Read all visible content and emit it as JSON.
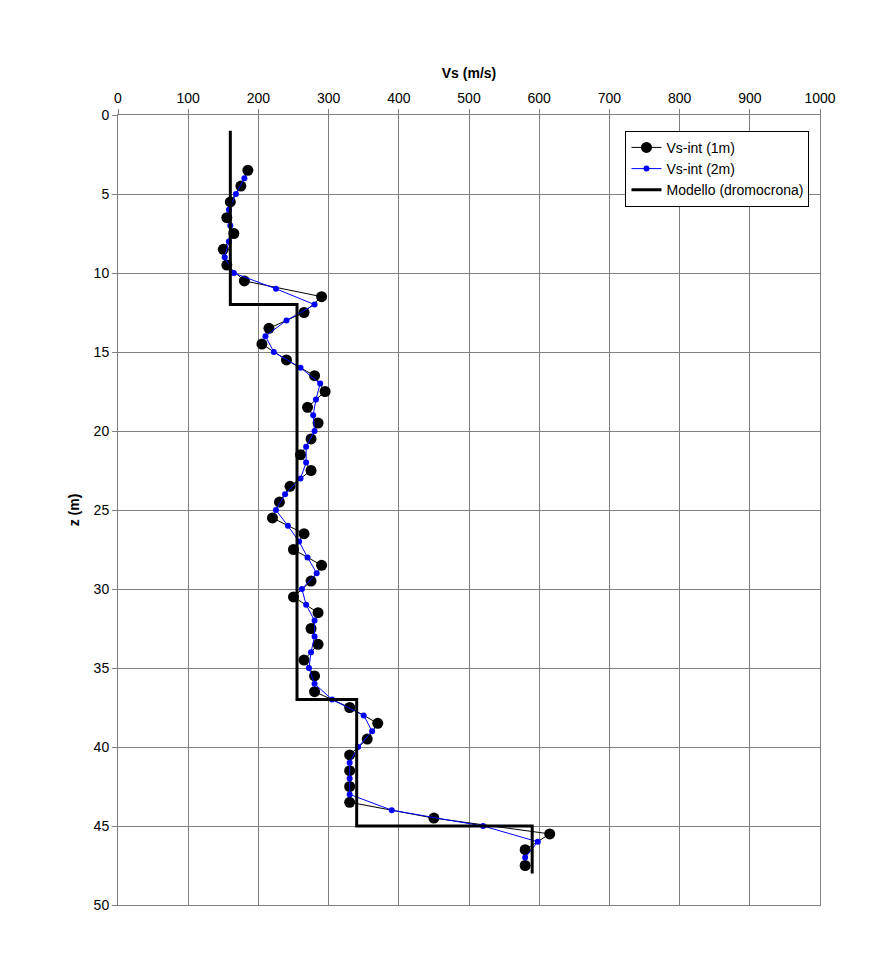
{
  "chart_data": {
    "type": "line",
    "x_label": "Vs (m/s)",
    "y_label": "z (m)",
    "xlim": [
      0,
      1000
    ],
    "xticks": [
      0,
      100,
      200,
      300,
      400,
      500,
      600,
      700,
      800,
      900,
      1000
    ],
    "ylim": [
      0,
      50
    ],
    "yticks": [
      0,
      5,
      10,
      15,
      20,
      25,
      30,
      35,
      40,
      45,
      50
    ],
    "grid": true,
    "legend": "top right",
    "series": [
      {
        "name": "Vs-int (1m)",
        "color": "#000000",
        "marker": "circle",
        "line_style": "solid",
        "x": [
          185,
          175,
          160,
          155,
          165,
          150,
          155,
          180,
          290,
          265,
          215,
          205,
          240,
          280,
          295,
          270,
          285,
          275,
          260,
          275,
          245,
          230,
          220,
          265,
          250,
          290,
          275,
          250,
          285,
          275,
          285,
          265,
          280,
          280,
          330,
          370,
          355,
          330,
          330,
          330,
          330,
          450,
          615,
          580,
          580
        ],
        "y": [
          3.5,
          4.5,
          5.5,
          6.5,
          7.5,
          8.5,
          9.5,
          10.5,
          11.5,
          12.5,
          13.5,
          14.5,
          15.5,
          16.5,
          17.5,
          18.5,
          19.5,
          20.5,
          21.5,
          22.5,
          23.5,
          24.5,
          25.5,
          26.5,
          27.5,
          28.5,
          29.5,
          30.5,
          31.5,
          32.5,
          33.5,
          34.5,
          35.5,
          36.5,
          37.5,
          38.5,
          39.5,
          40.5,
          41.5,
          42.5,
          43.5,
          44.5,
          45.5,
          46.5,
          47.5
        ]
      },
      {
        "name": "Vs-int (2m)",
        "color": "#0000ff",
        "marker": "circle",
        "line_style": "solid",
        "x": [
          180,
          168,
          158,
          160,
          158,
          152,
          165,
          225,
          280,
          240,
          210,
          222,
          260,
          288,
          282,
          278,
          280,
          268,
          268,
          260,
          238,
          225,
          242,
          258,
          270,
          283,
          262,
          268,
          280,
          280,
          275,
          272,
          280,
          305,
          350,
          362,
          342,
          330,
          330,
          330,
          390,
          520,
          598,
          580
        ],
        "y": [
          4,
          5,
          6,
          7,
          8,
          9,
          10,
          11,
          12,
          13,
          14,
          15,
          16,
          17,
          18,
          19,
          20,
          21,
          22,
          23,
          24,
          25,
          26,
          27,
          28,
          29,
          30,
          31,
          32,
          33,
          34,
          35,
          36,
          37,
          38,
          39,
          40,
          41,
          42,
          43,
          44,
          45,
          46,
          47
        ]
      },
      {
        "name": "Modello (dromocrona)",
        "color": "#000000",
        "marker": "none",
        "line_style": "solid",
        "x": [
          160,
          160,
          255,
          255,
          340,
          340,
          590,
          590
        ],
        "y": [
          1,
          12,
          12,
          37,
          37,
          45,
          45,
          48
        ]
      }
    ]
  }
}
